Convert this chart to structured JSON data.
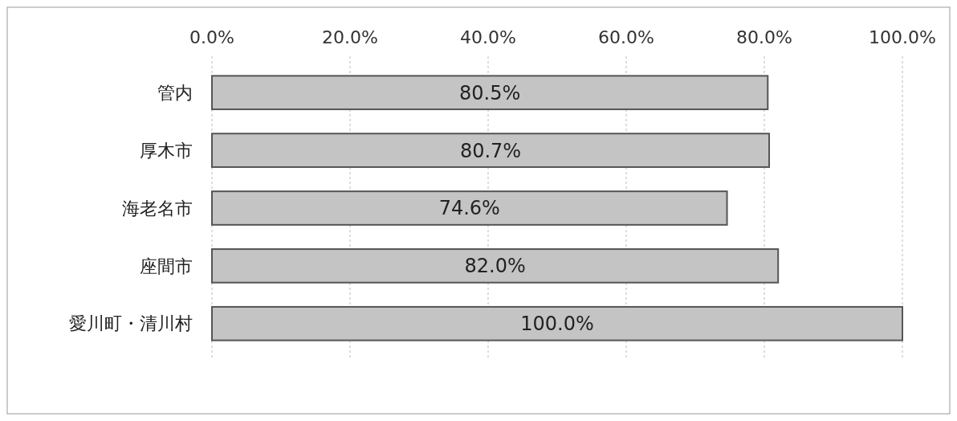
{
  "chart_data": {
    "type": "bar",
    "orientation": "horizontal",
    "categories": [
      "管内",
      "厚木市",
      "海老名市",
      "座間市",
      "愛川町・清川村"
    ],
    "values": [
      80.5,
      80.7,
      74.6,
      82.0,
      100.0
    ],
    "value_labels": [
      "80.5%",
      "80.7%",
      "74.6%",
      "82.0%",
      "100.0%"
    ],
    "color": "#c4c4c4",
    "xlim": [
      0,
      100
    ],
    "xticks": [
      {
        "value": 0,
        "label": "0.0%"
      },
      {
        "value": 20,
        "label": "20.0%"
      },
      {
        "value": 40,
        "label": "40.0%"
      },
      {
        "value": 60,
        "label": "60.0%"
      },
      {
        "value": 80,
        "label": "80.0%"
      },
      {
        "value": 100,
        "label": "100.0%"
      }
    ],
    "grid": "x"
  }
}
